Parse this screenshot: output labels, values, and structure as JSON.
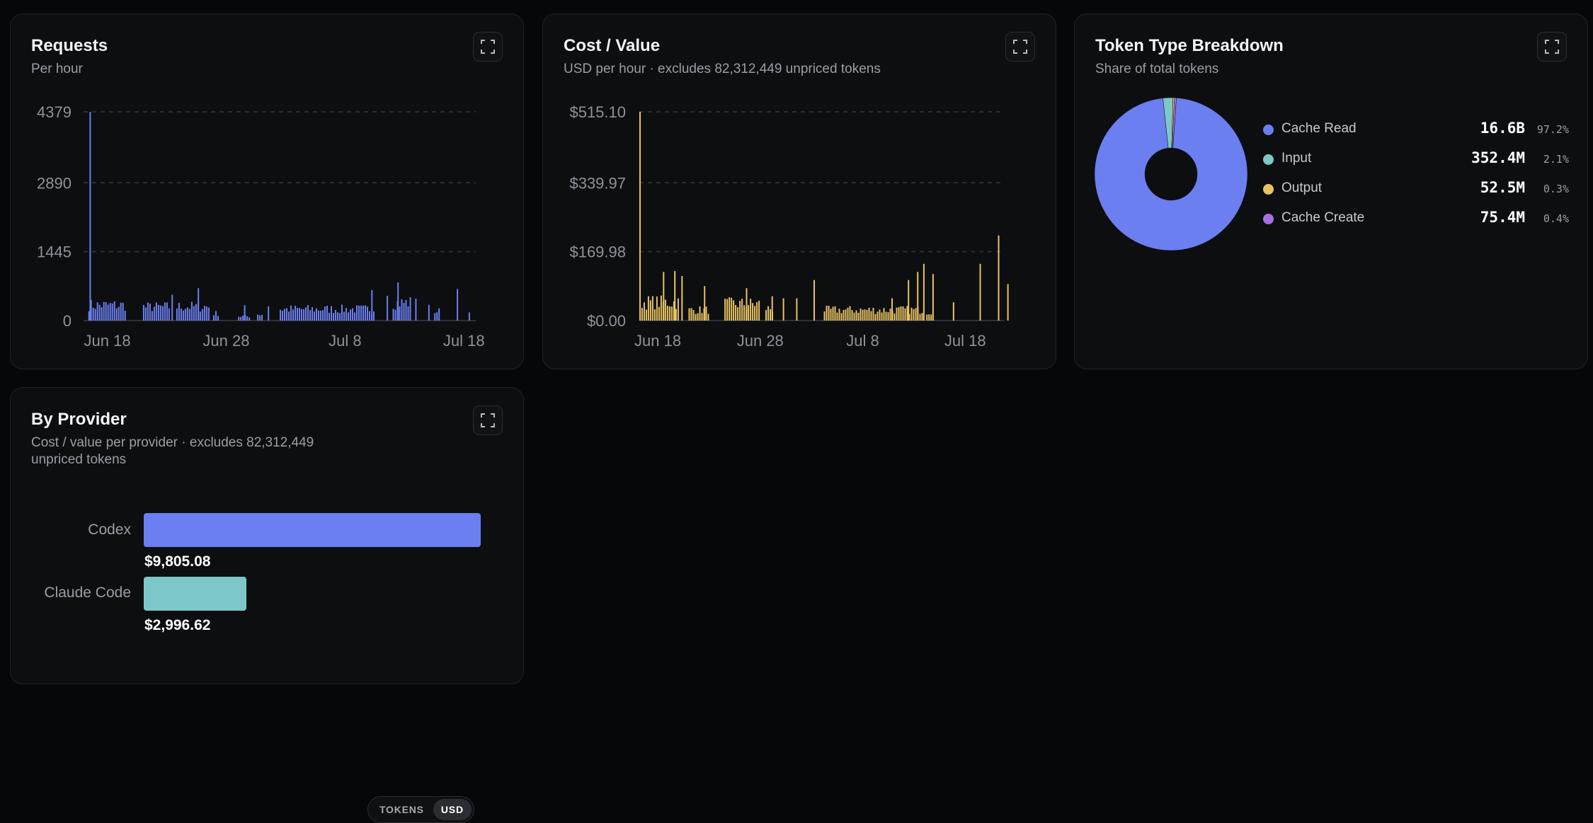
{
  "colors": {
    "background": "#060708",
    "card": "#0d0e10",
    "requests_bar": "#6b7ff0",
    "cost_bar": "#e7c363",
    "cache_read": "#6b7ff0",
    "input": "#7cc7c7",
    "output": "#e7c363",
    "cache_create": "#a86ee6",
    "codex": "#6b7ff0",
    "claude_code": "#7cc7c7"
  },
  "requests": {
    "title": "Requests",
    "subtitle": "Per hour",
    "expand_icon": "expand-icon"
  },
  "cost": {
    "title": "Cost / Value",
    "subtitle": "USD per hour · excludes 82,312,449 unpriced tokens",
    "expand_icon": "expand-icon"
  },
  "tokens": {
    "title": "Token Type Breakdown",
    "subtitle": "Share of total tokens",
    "expand_icon": "expand-icon",
    "legend": [
      {
        "name": "Cache Read",
        "value": "16.6B",
        "pct": "97.2%",
        "color": "#6b7ff0"
      },
      {
        "name": "Input",
        "value": "352.4M",
        "pct": "2.1%",
        "color": "#7cc7c7"
      },
      {
        "name": "Output",
        "value": "52.5M",
        "pct": "0.3%",
        "color": "#e7c363"
      },
      {
        "name": "Cache Create",
        "value": "75.4M",
        "pct": "0.4%",
        "color": "#a86ee6"
      }
    ]
  },
  "provider": {
    "title": "By Provider",
    "subtitle_line1": "Cost / value per provider · excludes 82,312,449",
    "subtitle_line2": "unpriced tokens",
    "toggle_tokens": "TOKENS",
    "toggle_usd": "USD",
    "expand_icon": "expand-icon"
  },
  "chart_data": [
    {
      "type": "bar",
      "title": "Requests",
      "subtitle": "Per hour",
      "y_ticks": [
        "4379",
        "2890",
        "1445",
        "0"
      ],
      "y_tick_values": [
        4379,
        2890,
        1445,
        0
      ],
      "ylim": [
        0,
        4379
      ],
      "x_ticks": [
        "Jun 18",
        "Jun 28",
        "Jul 8",
        "Jul 18"
      ],
      "x_tick_days": [
        0,
        10,
        20,
        30
      ],
      "x_range_days": [
        -2,
        31
      ],
      "grid": true,
      "peak": 4379,
      "bursts": [
        {
          "start": -1.6,
          "end": 1.6,
          "level": 430
        },
        {
          "start": 3.0,
          "end": 5.2,
          "level": 380
        },
        {
          "start": 5.8,
          "end": 8.6,
          "level": 390
        },
        {
          "start": 8.9,
          "end": 9.3,
          "level": 200
        },
        {
          "start": 11.0,
          "end": 12.0,
          "level": 120
        },
        {
          "start": 12.6,
          "end": 13.0,
          "level": 180
        },
        {
          "start": 14.5,
          "end": 22.5,
          "level": 320
        },
        {
          "start": 24.0,
          "end": 25.5,
          "level": 500
        },
        {
          "start": 27.5,
          "end": 28.0,
          "level": 260
        }
      ],
      "spikes": [
        {
          "day": -1.5,
          "value": 4379
        },
        {
          "day": 5.4,
          "value": 540
        },
        {
          "day": 7.6,
          "value": 680
        },
        {
          "day": 11.5,
          "value": 320
        },
        {
          "day": 13.5,
          "value": 300
        },
        {
          "day": 22.2,
          "value": 640
        },
        {
          "day": 23.5,
          "value": 520
        },
        {
          "day": 24.4,
          "value": 800
        },
        {
          "day": 25.9,
          "value": 460
        },
        {
          "day": 27.0,
          "value": 330
        },
        {
          "day": 29.4,
          "value": 660
        },
        {
          "day": 30.4,
          "value": 170
        }
      ]
    },
    {
      "type": "bar",
      "title": "Cost / Value",
      "subtitle": "USD per hour · excludes 82,312,449 unpriced tokens",
      "y_ticks": [
        "$515.10",
        "$339.97",
        "$169.98",
        "$0.00"
      ],
      "y_tick_values": [
        515.1,
        339.97,
        169.98,
        0
      ],
      "ylim": [
        0,
        515.1
      ],
      "x_ticks": [
        "Jun 18",
        "Jun 28",
        "Jul 8",
        "Jul 18"
      ],
      "x_tick_days": [
        0,
        10,
        20,
        30
      ],
      "x_range_days": [
        -1.8,
        34.2
      ],
      "grid": true,
      "peak": 515.1,
      "bursts": [
        {
          "start": -1.6,
          "end": 2.0,
          "level": 60
        },
        {
          "start": 3.0,
          "end": 5.0,
          "level": 35
        },
        {
          "start": 6.5,
          "end": 10.0,
          "level": 55
        },
        {
          "start": 10.5,
          "end": 11.2,
          "level": 40
        },
        {
          "start": 16.2,
          "end": 25.8,
          "level": 35
        },
        {
          "start": 26.2,
          "end": 26.8,
          "level": 30
        }
      ],
      "spikes": [
        {
          "day": -1.8,
          "value": 515.1
        },
        {
          "day": 0.5,
          "value": 120
        },
        {
          "day": 1.6,
          "value": 122
        },
        {
          "day": 2.3,
          "value": 110
        },
        {
          "day": 4.5,
          "value": 85
        },
        {
          "day": 8.6,
          "value": 80
        },
        {
          "day": 11.1,
          "value": 60
        },
        {
          "day": 12.2,
          "value": 55
        },
        {
          "day": 13.5,
          "value": 55
        },
        {
          "day": 15.2,
          "value": 100
        },
        {
          "day": 22.8,
          "value": 55
        },
        {
          "day": 24.4,
          "value": 100
        },
        {
          "day": 25.3,
          "value": 120
        },
        {
          "day": 25.9,
          "value": 140
        },
        {
          "day": 26.8,
          "value": 115
        },
        {
          "day": 28.8,
          "value": 45
        },
        {
          "day": 31.4,
          "value": 140
        },
        {
          "day": 33.2,
          "value": 210
        },
        {
          "day": 34.1,
          "value": 90
        }
      ]
    },
    {
      "type": "pie",
      "title": "Token Type Breakdown",
      "subtitle": "Share of total tokens",
      "series": [
        {
          "name": "Cache Read",
          "value": 97.2,
          "label": "16.6B"
        },
        {
          "name": "Input",
          "value": 2.1,
          "label": "352.4M"
        },
        {
          "name": "Output",
          "value": 0.3,
          "label": "52.5M"
        },
        {
          "name": "Cache Create",
          "value": 0.4,
          "label": "75.4M"
        }
      ]
    },
    {
      "type": "bar",
      "title": "By Provider",
      "orientation": "horizontal",
      "categories": [
        "Codex",
        "Claude Code"
      ],
      "values": [
        9805.08,
        2996.62
      ],
      "value_labels": [
        "$9,805.08",
        "$2,996.62"
      ]
    }
  ]
}
